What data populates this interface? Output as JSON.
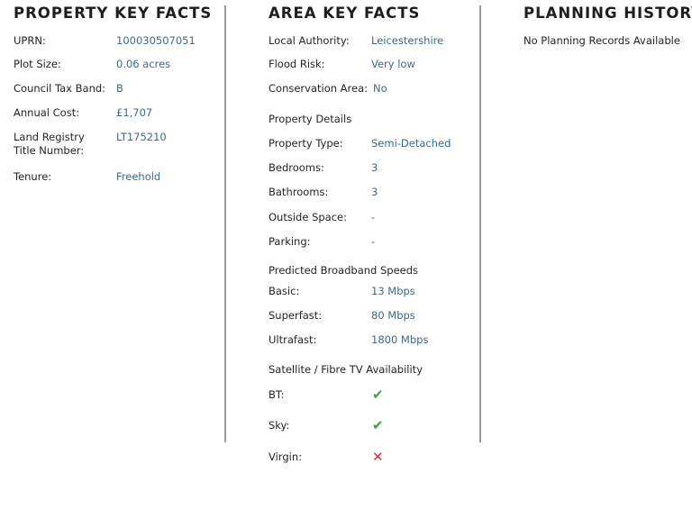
{
  "property_key_facts": {
    "heading": "PROPERTY KEY FACTS",
    "rows": [
      {
        "label": "UPRN:",
        "value": "100030507051"
      },
      {
        "label": "Plot Size:",
        "value": "0.06 acres"
      },
      {
        "label": "Council Tax Band:",
        "value": "B"
      },
      {
        "label": "Annual Cost:",
        "value": "£1,707"
      },
      {
        "label": "Land Registry Title Number:",
        "value": "LT175210"
      },
      {
        "label": "Tenure:",
        "value": "Freehold"
      }
    ]
  },
  "area_key_facts": {
    "heading": "AREA KEY FACTS",
    "rows": [
      {
        "label": "Local Authority:",
        "value": "Leicestershire"
      },
      {
        "label": "Flood Risk:",
        "value": "Very low"
      },
      {
        "label": "Conservation Area:",
        "value": "No"
      }
    ],
    "property_details": {
      "heading": "Property Details",
      "rows": [
        {
          "label": "Property Type:",
          "value": "Semi-Detached"
        },
        {
          "label": "Bedrooms:",
          "value": "3"
        },
        {
          "label": "Bathrooms:",
          "value": "3"
        },
        {
          "label": "Outside Space:",
          "value": "-"
        },
        {
          "label": "Parking:",
          "value": "-"
        }
      ]
    },
    "broadband": {
      "heading": "Predicted Broadband Speeds",
      "rows": [
        {
          "label": "Basic:",
          "value": "13 Mbps"
        },
        {
          "label": "Superfast:",
          "value": "80 Mbps"
        },
        {
          "label": "Ultrafast:",
          "value": "1800 Mbps"
        }
      ]
    },
    "tv": {
      "heading": "Satellite / Fibre TV Availability",
      "rows": [
        {
          "label": "BT:",
          "available": true,
          "icon": "check-icon"
        },
        {
          "label": "Sky:",
          "available": true,
          "icon": "check-icon"
        },
        {
          "label": "Virgin:",
          "available": false,
          "icon": "cross-icon"
        }
      ]
    }
  },
  "planning_history": {
    "heading": "PLANNING HISTORY",
    "text": "No Planning Records Available"
  },
  "colors": {
    "value": "#3e6a86",
    "check": "#3aa33a",
    "cross": "#d0343c"
  }
}
